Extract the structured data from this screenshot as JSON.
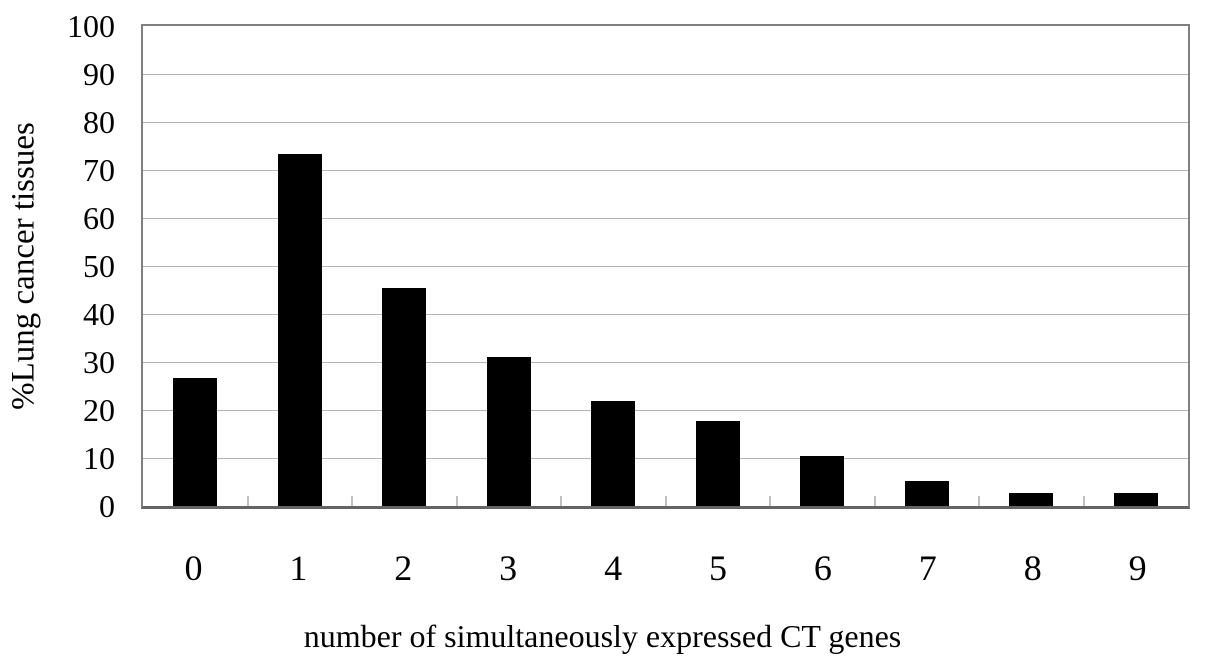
{
  "chart_data": {
    "type": "bar",
    "title": "",
    "xlabel": "number of simultaneously expressed CT genes",
    "ylabel": "%Lung cancer tissues",
    "categories": [
      "0",
      "1",
      "2",
      "3",
      "4",
      "5",
      "6",
      "7",
      "8",
      "9"
    ],
    "values": [
      26.6,
      73.4,
      45.5,
      31.0,
      21.9,
      17.8,
      10.5,
      5.3,
      2.8,
      2.8
    ],
    "series_name": "%Lung cancer tissues",
    "ylim": [
      0,
      100
    ],
    "y_tick_step": 10,
    "y_ticks": [
      0,
      10,
      20,
      30,
      40,
      50,
      60,
      70,
      80,
      90,
      100
    ],
    "grid": true,
    "legend": false,
    "bar_color": "#000000",
    "gridline_color": "#b3b3b3",
    "plot_border_color": "#808080",
    "background_color": "#ffffff"
  }
}
